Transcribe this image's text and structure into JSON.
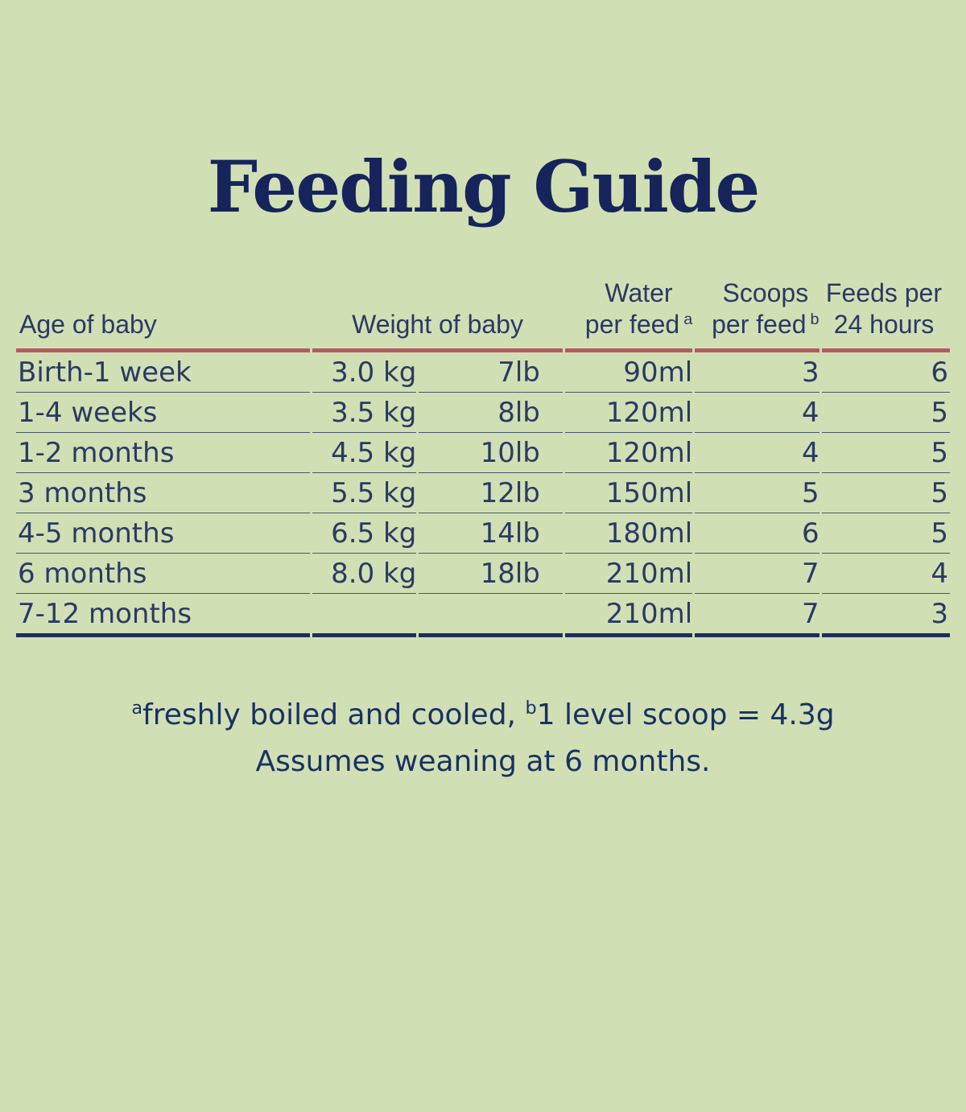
{
  "page": {
    "background_color": "#d1e0b4",
    "accent_line_color": "#b25a63",
    "navy_color": "#16245b"
  },
  "title": "Feeding Guide",
  "table": {
    "headers": {
      "age": "Age of baby",
      "weight": "Weight of baby",
      "water": {
        "line1": "Water",
        "line2": "per feed",
        "sup": "a"
      },
      "scoops": {
        "line1": "Scoops",
        "line2": "per feed",
        "sup": "b"
      },
      "feeds": {
        "line1": "Feeds per",
        "line2": "24 hours"
      }
    },
    "rows": [
      {
        "age": "Birth-1 week",
        "kg": "3.0 kg",
        "lb": "7lb",
        "water": "90ml",
        "scoops": "3",
        "feeds": "6"
      },
      {
        "age": "1-4 weeks",
        "kg": "3.5 kg",
        "lb": "8lb",
        "water": "120ml",
        "scoops": "4",
        "feeds": "5"
      },
      {
        "age": "1-2 months",
        "kg": "4.5 kg",
        "lb": "10lb",
        "water": "120ml",
        "scoops": "4",
        "feeds": "5"
      },
      {
        "age": "3 months",
        "kg": "5.5 kg",
        "lb": "12lb",
        "water": "150ml",
        "scoops": "5",
        "feeds": "5"
      },
      {
        "age": "4-5 months",
        "kg": "6.5 kg",
        "lb": "14lb",
        "water": "180ml",
        "scoops": "6",
        "feeds": "5"
      },
      {
        "age": "6 months",
        "kg": "8.0 kg",
        "lb": "18lb",
        "water": "210ml",
        "scoops": "7",
        "feeds": "4"
      },
      {
        "age": "7-12 months",
        "kg": "",
        "lb": "",
        "water": "210ml",
        "scoops": "7",
        "feeds": "3"
      }
    ]
  },
  "footnotes": {
    "sup_a": "a",
    "text_a": "freshly boiled and cooled, ",
    "sup_b": "b",
    "text_b": "1 level scoop = 4.3g",
    "line2": "Assumes weaning at 6 months."
  }
}
